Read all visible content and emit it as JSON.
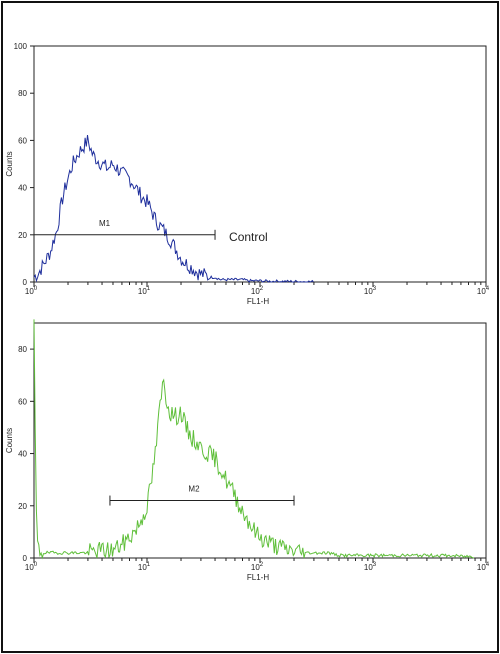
{
  "chart_data": [
    {
      "type": "line",
      "xscale": "log",
      "xlim": [
        1,
        10000
      ],
      "ylim": [
        0,
        100
      ],
      "xlabel": "FL1-H",
      "ylabel": "Counts",
      "ytick_labels": [
        "0",
        "20",
        "40",
        "60",
        "80",
        "100"
      ],
      "xtick_labels": [
        {
          "base": "10",
          "exp": "0"
        },
        {
          "base": "10",
          "exp": "1"
        },
        {
          "base": "10",
          "exp": "2"
        },
        {
          "base": "10",
          "exp": "3"
        },
        {
          "base": "10",
          "exp": "4"
        }
      ],
      "series": [
        {
          "color": "#1f2f9c",
          "x": [
            1.0,
            1.1,
            1.2,
            1.3,
            1.4,
            1.5,
            1.6,
            1.7,
            1.8,
            2.0,
            2.2,
            2.5,
            2.8,
            3.0,
            3.3,
            3.6,
            4.0,
            4.5,
            5.0,
            5.5,
            6.0,
            7.0,
            8.0,
            9.0,
            10.0,
            11.0,
            12.0,
            14.0,
            16.0,
            18.0,
            20.0,
            22.0,
            25.0,
            28.0,
            32.0,
            36.0,
            40.0,
            45.0,
            50.0,
            60.0,
            70.0,
            80.0,
            100.0,
            120.0,
            150.0,
            200.0,
            300.0
          ],
          "y": [
            2,
            4,
            7,
            10,
            13,
            18,
            22,
            30,
            36,
            44,
            50,
            55,
            58,
            60,
            54,
            52,
            50,
            48,
            50,
            48,
            46,
            44,
            40,
            36,
            34,
            30,
            26,
            22,
            18,
            14,
            10,
            8,
            6,
            4,
            3,
            2,
            2,
            1,
            1,
            1,
            1,
            0.5,
            0.5,
            0.3,
            0.3,
            0.2,
            0.1
          ]
        }
      ],
      "markers": [
        {
          "label": "M1",
          "x_start": 1,
          "x_end": 40,
          "y": 20
        }
      ],
      "annotation": "Control"
    },
    {
      "type": "line",
      "xscale": "log",
      "xlim": [
        1,
        10000
      ],
      "ylim": [
        0,
        90
      ],
      "xlabel": "FL1-H",
      "ylabel": "Counts",
      "ytick_labels": [
        "0",
        "20",
        "40",
        "60",
        "80"
      ],
      "xtick_labels": [
        {
          "base": "10",
          "exp": "0"
        },
        {
          "base": "10",
          "exp": "1"
        },
        {
          "base": "10",
          "exp": "2"
        },
        {
          "base": "10",
          "exp": "3"
        },
        {
          "base": "10",
          "exp": "4"
        }
      ],
      "series": [
        {
          "color": "#5fbf3a",
          "x": [
            1.0,
            1.03,
            1.06,
            1.1,
            1.2,
            1.5,
            2.0,
            3.0,
            4.0,
            5.0,
            6.0,
            7.0,
            8.0,
            9.0,
            10.0,
            11.0,
            12.0,
            13.0,
            14.0,
            15.0,
            16.0,
            18.0,
            20.0,
            22.0,
            25.0,
            28.0,
            30.0,
            35.0,
            40.0,
            45.0,
            50.0,
            60.0,
            70.0,
            80.0,
            90.0,
            100.0,
            120.0,
            150.0,
            180.0,
            200.0,
            250.0,
            300.0,
            400.0,
            500.0,
            700.0,
            1000.0,
            2000.0,
            4000.0,
            8000.0
          ],
          "y": [
            88,
            40,
            5,
            3,
            2,
            2,
            2,
            2,
            3,
            3,
            5,
            8,
            11,
            15,
            20,
            30,
            42,
            58,
            68,
            60,
            56,
            54,
            56,
            50,
            46,
            44,
            42,
            40,
            38,
            34,
            30,
            24,
            18,
            14,
            10,
            8,
            6,
            4,
            3,
            3,
            2,
            2,
            2,
            1,
            1,
            1,
            1,
            1,
            0.5
          ]
        }
      ],
      "markers": [
        {
          "label": "M2",
          "x_start": 4.7,
          "x_end": 200,
          "y": 22
        }
      ]
    }
  ]
}
